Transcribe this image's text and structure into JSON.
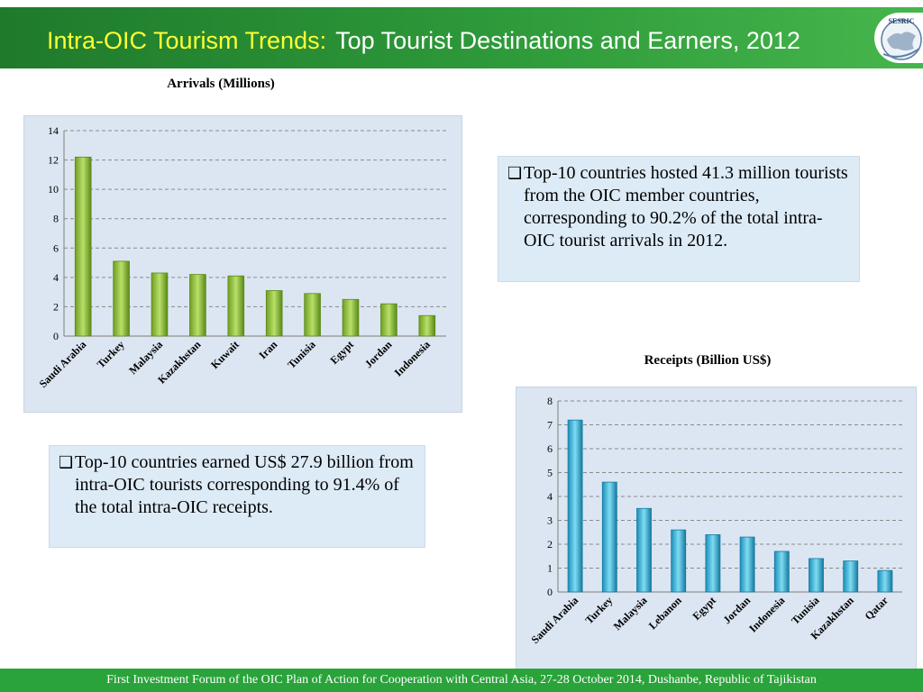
{
  "header": {
    "title_accent": "Intra-OIC Tourism Trends:",
    "title_main": "Top Tourist Destinations and Earners, 2012",
    "logo_text": "SESRIC"
  },
  "note_arrivals": "Top-10 countries hosted 41.3 million tourists from the OIC member countries, corresponding to 90.2% of the total intra-OIC tourist arrivals in 2012.",
  "note_receipts": "Top-10 countries earned US$ 27.9 billion from intra-OIC tourists corresponding to 91.4% of the total intra-OIC receipts.",
  "footer": "First Investment Forum of the OIC Plan of Action for Cooperation with Central Asia, 27-28 October 2014, Dushanbe, Republic of Tajikistan",
  "colors": {
    "header_green": "#2e9a3a",
    "arrivals_bar": "#8cc63f",
    "receipts_bar": "#2fb6dc",
    "panel": "#dce6f2"
  },
  "chart_data": [
    {
      "type": "bar",
      "title": "Arrivals (Millions)",
      "categories": [
        "Saudi Arabia",
        "Turkey",
        "Malaysia",
        "Kazakhstan",
        "Kuwait",
        "Iran",
        "Tunisia",
        "Egypt",
        "Jordan",
        "Indonesia"
      ],
      "values": [
        12.2,
        5.1,
        4.3,
        4.2,
        4.1,
        3.1,
        2.9,
        2.5,
        2.2,
        1.4
      ],
      "ylim": [
        0,
        14
      ],
      "yticks": [
        0,
        2,
        4,
        6,
        8,
        10,
        12,
        14
      ],
      "grid": true
    },
    {
      "type": "bar",
      "title": "Receipts (Billion US$)",
      "categories": [
        "Saudi Arabia",
        "Turkey",
        "Malaysia",
        "Lebanon",
        "Egypt",
        "Jordan",
        "Indonesia",
        "Tunisia",
        "Kazakhstan",
        "Qatar"
      ],
      "values": [
        7.2,
        4.6,
        3.5,
        2.6,
        2.4,
        2.3,
        1.7,
        1.4,
        1.3,
        0.9
      ],
      "ylim": [
        0,
        8
      ],
      "yticks": [
        0,
        1,
        2,
        3,
        4,
        5,
        6,
        7,
        8
      ],
      "grid": true
    }
  ]
}
